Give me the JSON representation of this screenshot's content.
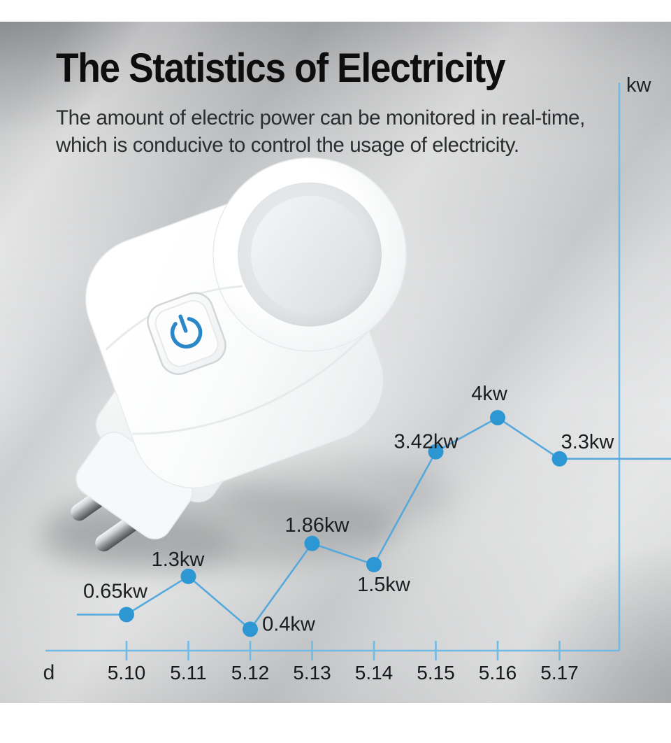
{
  "header": {
    "title": "The Statistics of Electricity",
    "subtitle_line1": "The amount of electric power can be monitored in real-time,",
    "subtitle_line2": "which is conducive to control the usage of electricity."
  },
  "product_image": {
    "description": "white smart plug with power button",
    "power_icon": "power-icon",
    "power_icon_color": "#2c87c6"
  },
  "chart_data": {
    "type": "line",
    "title": "",
    "x": [
      "5.10",
      "5.11",
      "5.12",
      "5.13",
      "5.14",
      "5.15",
      "5.16",
      "5.17"
    ],
    "values": [
      0.65,
      1.3,
      0.4,
      1.86,
      1.5,
      3.42,
      4,
      3.3
    ],
    "point_labels": [
      "0.65kw",
      "1.3kw",
      "0.4kw",
      "1.86kw",
      "1.5kw",
      "3.42kw",
      "4kw",
      "3.3kw"
    ],
    "xlabel": "d",
    "ylabel": "kw",
    "ylim": [
      0,
      4.6
    ],
    "grid": false,
    "legend": false,
    "line_color": "#55a9dc",
    "point_color": "#2d97d4",
    "axis_color": "#6fbbe6",
    "label_color": "#1b1d1f",
    "tick_label_color": "#17181a"
  }
}
